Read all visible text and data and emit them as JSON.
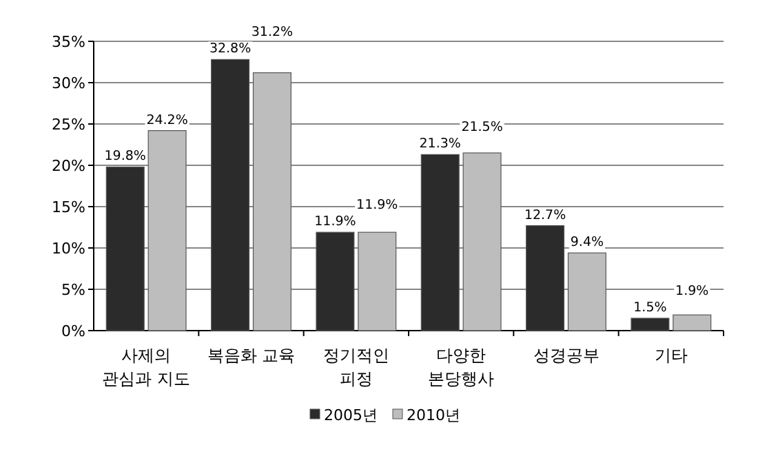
{
  "chart_data": {
    "type": "bar",
    "categories": [
      "사제의\n관심과 지도",
      "복음화 교육",
      "정기적인\n피정",
      "다양한\n본당행사",
      "성경공부",
      "기타"
    ],
    "series": [
      {
        "name": "2005년",
        "color": "#2b2b2b",
        "values": [
          19.8,
          32.8,
          11.9,
          21.3,
          12.7,
          1.5
        ],
        "value_labels": [
          "19.8%",
          "32.8%",
          "11.9%",
          "21.3%",
          "12.7%",
          "1.5%"
        ]
      },
      {
        "name": "2010년",
        "color": "#bdbdbd",
        "values": [
          24.2,
          31.2,
          11.9,
          21.5,
          9.4,
          1.9
        ],
        "value_labels": [
          "24.2%",
          "31.2%",
          "11.9%",
          "21.5%",
          "9.4%",
          "1.9%"
        ]
      }
    ],
    "ylim": [
      0,
      35
    ],
    "yticks": [
      {
        "value": 0,
        "label": "0%"
      },
      {
        "value": 5,
        "label": "5%"
      },
      {
        "value": 10,
        "label": "10%"
      },
      {
        "value": 15,
        "label": "15%"
      },
      {
        "value": 20,
        "label": "20%"
      },
      {
        "value": 25,
        "label": "25%"
      },
      {
        "value": 30,
        "label": "30%"
      },
      {
        "value": 35,
        "label": "35%"
      }
    ],
    "grid": "y",
    "legend": "bottom"
  }
}
